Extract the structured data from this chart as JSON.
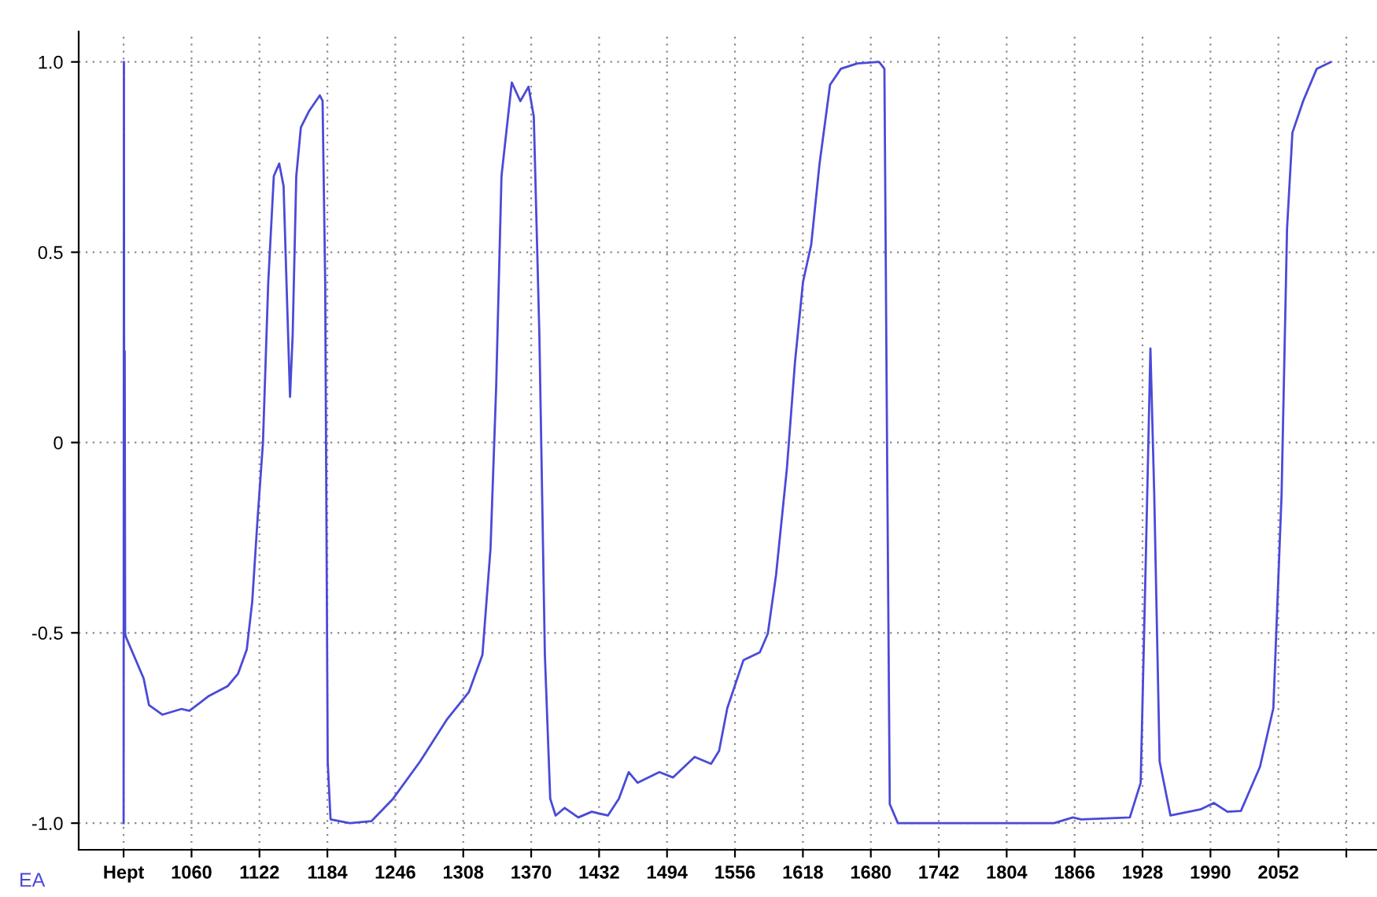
{
  "chart_data": {
    "type": "line",
    "x": [
      998,
      998.3,
      998.6,
      999,
      999.4,
      1000,
      1016.3,
      1021.2,
      1033.5,
      1050.8,
      1058,
      1075.2,
      1093,
      1102.5,
      1110.4,
      1115.4,
      1120.1,
      1125.2,
      1130,
      1135.1,
      1140,
      1144,
      1147.4,
      1149.9,
      1152.3,
      1155.6,
      1159.8,
      1167.1,
      1177.1,
      1179.6,
      1182,
      1184.3,
      1186.9,
      1204.4,
      1224.1,
      1243.9,
      1268.6,
      1293.5,
      1313.1,
      1325.5,
      1332.9,
      1338,
      1342.9,
      1352.3,
      1360.1,
      1367.6,
      1372.4,
      1377.5,
      1382.5,
      1387.4,
      1392.3,
      1400.6,
      1413,
      1425.3,
      1440,
      1450,
      1459,
      1467.2,
      1487,
      1499.5,
      1519.2,
      1534.2,
      1541.5,
      1549,
      1563.7,
      1578.7,
      1586,
      1593.5,
      1603.4,
      1610.8,
      1618.1,
      1625.6,
      1633.1,
      1642.8,
      1652.7,
      1667.7,
      1687.5,
      1692.4,
      1694.8,
      1697.3,
      1704.7,
      1847.2,
      1864.4,
      1871.9,
      1916.4,
      1926.3,
      1931.2,
      1935.2,
      1938.7,
      1943.6,
      1953.5,
      1980.8,
      1993.1,
      2005.5,
      2017.8,
      2035.2,
      2047.4,
      2054.9,
      2059.9,
      2064.8,
      2074.7,
      2087,
      2099.4
    ],
    "series": [
      {
        "color": "#4a4ad8",
        "values": [
          -1.0,
          1.0,
          -0.5,
          0.24,
          -0.5,
          -0.51,
          -0.62,
          -0.69,
          -0.715,
          -0.7,
          -0.705,
          -0.667,
          -0.64,
          -0.607,
          -0.544,
          -0.418,
          -0.208,
          0.0,
          0.42,
          0.7,
          0.733,
          0.674,
          0.353,
          0.12,
          0.282,
          0.7,
          0.828,
          0.87,
          0.912,
          0.898,
          0.42,
          -0.84,
          -0.99,
          -1.0,
          -0.995,
          -0.936,
          -0.838,
          -0.726,
          -0.656,
          -0.558,
          -0.278,
          0.142,
          0.7,
          0.946,
          0.897,
          0.935,
          0.856,
          0.28,
          -0.558,
          -0.936,
          -0.98,
          -0.96,
          -0.985,
          -0.97,
          -0.98,
          -0.936,
          -0.866,
          -0.894,
          -0.866,
          -0.88,
          -0.826,
          -0.844,
          -0.81,
          -0.698,
          -0.572,
          -0.551,
          -0.502,
          -0.348,
          -0.068,
          0.212,
          0.422,
          0.52,
          0.73,
          0.94,
          0.982,
          0.996,
          1.0,
          0.982,
          0.0,
          -0.95,
          -1.0,
          -1.0,
          -0.985,
          -0.99,
          -0.985,
          -0.894,
          -0.278,
          0.247,
          -0.138,
          -0.838,
          -0.98,
          -0.964,
          -0.947,
          -0.97,
          -0.968,
          -0.852,
          -0.698,
          -0.138,
          0.562,
          0.814,
          0.898,
          0.982,
          0.999
        ]
      }
    ],
    "xlim": [
      957,
      2142
    ],
    "xticks": [
      {
        "value": 998,
        "label": "Hept"
      },
      1060,
      1122,
      1184,
      1246,
      1308,
      1370,
      1432,
      1494,
      1556,
      1618,
      1680,
      1742,
      1804,
      1866,
      1928,
      1990,
      2052,
      {
        "value": 2114,
        "label": null
      }
    ],
    "ylim": [
      -1.07,
      1.08
    ],
    "yticks": [
      {
        "value": 1,
        "label": "1.0"
      },
      {
        "value": 0.5,
        "label": "0.5"
      },
      0,
      {
        "value": -0.5,
        "label": "-0.5"
      },
      {
        "value": -1,
        "label": "-1.0"
      }
    ],
    "grid": true,
    "marker": "none",
    "line_style": "solid",
    "annotations": [
      "EA"
    ]
  }
}
